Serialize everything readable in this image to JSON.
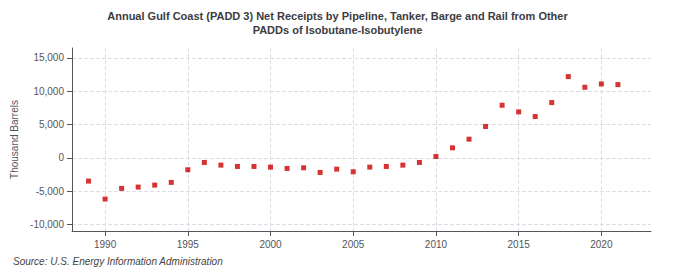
{
  "chart_data": {
    "type": "scatter",
    "title": "Annual Gulf Coast (PADD 3) Net Receipts by Pipeline, Tanker, Barge and Rail from Other\nPADDs of Isobutane-Isobutylene",
    "ylabel": "Thousand Barrels",
    "source": "Source: U.S. Energy Information Administration",
    "x": [
      1989,
      1990,
      1991,
      1992,
      1993,
      1994,
      1995,
      1996,
      1997,
      1998,
      1999,
      2000,
      2001,
      2002,
      2003,
      2004,
      2005,
      2006,
      2007,
      2008,
      2009,
      2010,
      2011,
      2012,
      2013,
      2014,
      2015,
      2016,
      2017,
      2018,
      2019,
      2020,
      2021
    ],
    "values": [
      -3500,
      -6200,
      -4600,
      -4400,
      -4100,
      -3700,
      -1800,
      -700,
      -1100,
      -1300,
      -1300,
      -1400,
      -1600,
      -1500,
      -2200,
      -1700,
      -2100,
      -1400,
      -1300,
      -1100,
      -700,
      200,
      1500,
      2800,
      4700,
      7900,
      6900,
      6200,
      8300,
      12200,
      10600,
      11100,
      11000
    ],
    "color": "#cc0000",
    "marker": "square",
    "xlim": [
      1988,
      2023
    ],
    "xticks": [
      1990,
      1995,
      2000,
      2005,
      2010,
      2015,
      2020
    ],
    "ylim": [
      -11000,
      16500
    ],
    "yticks": [
      {
        "value": -10000,
        "label": "-10,000"
      },
      {
        "value": -5000,
        "label": "-5,000"
      },
      0,
      {
        "value": 5000,
        "label": "5,000"
      },
      {
        "value": 10000,
        "label": "10,000"
      },
      {
        "value": 15000,
        "label": "15,000"
      }
    ],
    "grid": true
  }
}
